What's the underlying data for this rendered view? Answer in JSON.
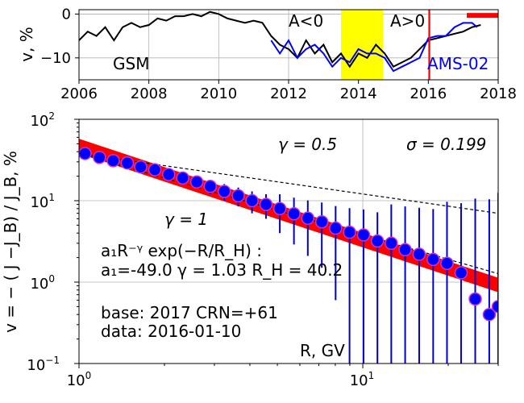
{
  "chart_data": [
    {
      "type": "line",
      "ylabel": "v, %",
      "xlim": [
        2006,
        2018
      ],
      "ylim": [
        -15,
        1
      ],
      "x_ticks": [
        "2006",
        "2008",
        "2010",
        "2012",
        "2014",
        "2016",
        "2018"
      ],
      "y_ticks": [
        "0",
        "−10"
      ],
      "grid": true,
      "annotations": {
        "gsm": "GSM",
        "ams": "AMS-02",
        "a_neg": "A<0",
        "a_pos": "A>0"
      },
      "highlight_span": {
        "from": 2013.5,
        "to": 2014.7,
        "color": "#ffff00"
      },
      "marker_line_x": 2016.03,
      "base_bar": {
        "from": 2017.1,
        "to": 2018,
        "y": -0.3
      },
      "series": [
        {
          "color": "#000000",
          "x": [
            2006.0,
            2006.25,
            2006.5,
            2006.75,
            2007.0,
            2007.25,
            2007.5,
            2007.75,
            2008.0,
            2008.25,
            2008.5,
            2008.75,
            2009.0,
            2009.25,
            2009.5,
            2009.75,
            2010.0,
            2010.25,
            2010.5,
            2010.75,
            2011.0,
            2011.25,
            2011.5,
            2011.75,
            2012.0,
            2012.25,
            2012.5,
            2012.75,
            2013.0,
            2013.25,
            2013.5,
            2013.75,
            2014.0,
            2014.25,
            2014.5,
            2014.75,
            2015.0,
            2015.25,
            2015.5,
            2015.75,
            2016.0,
            2016.25,
            2016.5,
            2016.75,
            2017.0,
            2017.25,
            2017.5
          ],
          "y": [
            -6,
            -4,
            -5,
            -3,
            -6,
            -3,
            -2,
            -3,
            -2.5,
            -1,
            -1.5,
            -0.5,
            -0.5,
            0,
            -0.5,
            0.5,
            0,
            -1,
            -1.5,
            -2,
            -1.5,
            -2,
            -5,
            -7,
            -8,
            -10,
            -6,
            -9,
            -7,
            -11,
            -9,
            -12,
            -9,
            -10,
            -7,
            -9,
            -12,
            -11,
            -10,
            -8,
            -6,
            -5.5,
            -5,
            -4.5,
            -4,
            -3,
            -2.5
          ]
        },
        {
          "color": "#0000ff",
          "x": [
            2011.5,
            2011.75,
            2012.0,
            2012.25,
            2012.5,
            2012.75,
            2013.0,
            2013.25,
            2013.5,
            2013.75,
            2014.0,
            2014.25,
            2014.5,
            2014.75,
            2015.0,
            2015.25,
            2015.5,
            2015.75,
            2016.0,
            2016.25,
            2016.5,
            2016.75,
            2017.0,
            2017.25,
            2017.4
          ],
          "y": [
            -6,
            -9,
            -6,
            -10,
            -8,
            -7,
            -9,
            -12,
            -10,
            -11,
            -8,
            -9,
            -9,
            -10,
            -13,
            -12,
            -11,
            -10,
            -5.5,
            -5,
            -5,
            -3,
            -2,
            -2,
            -3
          ]
        }
      ]
    },
    {
      "type": "scatter",
      "ylabel": "v  =  − ( J −J_B) / J_B, %",
      "xlabel": "R, GV",
      "xscale": "log",
      "yscale": "log",
      "xlim": [
        1,
        30
      ],
      "ylim": [
        0.1,
        100
      ],
      "x_tick_labels": {
        "one": "10",
        "one_exp": "0",
        "ten": "10",
        "ten_exp": "1"
      },
      "y_tick_labels": [
        {
          "base": "10",
          "exp": "2"
        },
        {
          "base": "10",
          "exp": "1"
        },
        {
          "base": "10",
          "exp": "0"
        },
        {
          "base": "10",
          "exp": "−1"
        }
      ],
      "grid": true,
      "fit_params": {
        "a1": "-49.0",
        "gamma": "1.03",
        "RH": "40.2"
      },
      "annotations": {
        "gamma_top": "γ = 0.5",
        "gamma_mid": "γ = 1",
        "sigma": "σ = 0.199",
        "formula": "a₁R⁻ᵞ exp(−R/R_H) :",
        "fit_line": "a₁=-49.0  γ = 1.03  R_H = 40.2",
        "base_line": "base: 2017   CRN=+61",
        "data_line": "data: 2016-01-10"
      },
      "reference_lines": [
        {
          "name": "γ = 0.5",
          "x": [
            1,
            30
          ],
          "y": [
            38,
            7.0
          ]
        },
        {
          "name": "γ = 1",
          "x": [
            1,
            30
          ],
          "y": [
            38,
            1.27
          ]
        }
      ],
      "fit_band": {
        "x": [
          1,
          30
        ],
        "y": [
          47,
          0.92
        ]
      },
      "points": {
        "x": [
          1.05,
          1.18,
          1.32,
          1.48,
          1.65,
          1.85,
          2.07,
          2.32,
          2.6,
          2.9,
          3.25,
          3.64,
          4.07,
          4.56,
          5.1,
          5.72,
          6.4,
          7.17,
          8.02,
          8.98,
          10.06,
          11.26,
          12.6,
          14.1,
          15.8,
          17.7,
          19.8,
          22.2,
          24.9,
          27.9,
          30.0
        ],
        "y": [
          38,
          34,
          31,
          29,
          26,
          24,
          21,
          19,
          17,
          15,
          13,
          11.5,
          10,
          9,
          8,
          6.9,
          6.1,
          5.5,
          4.6,
          4.1,
          3.8,
          3.2,
          3.0,
          2.5,
          2.2,
          1.9,
          1.7,
          1.3,
          0.62,
          0.4,
          0.5
        ],
        "err": [
          2,
          2,
          2,
          2,
          2,
          2,
          2,
          2,
          2,
          3,
          3,
          3,
          3,
          3,
          4,
          4,
          4,
          4,
          4,
          4,
          4,
          4,
          6,
          6,
          6,
          6,
          8,
          8,
          10,
          10,
          12
        ]
      }
    }
  ]
}
